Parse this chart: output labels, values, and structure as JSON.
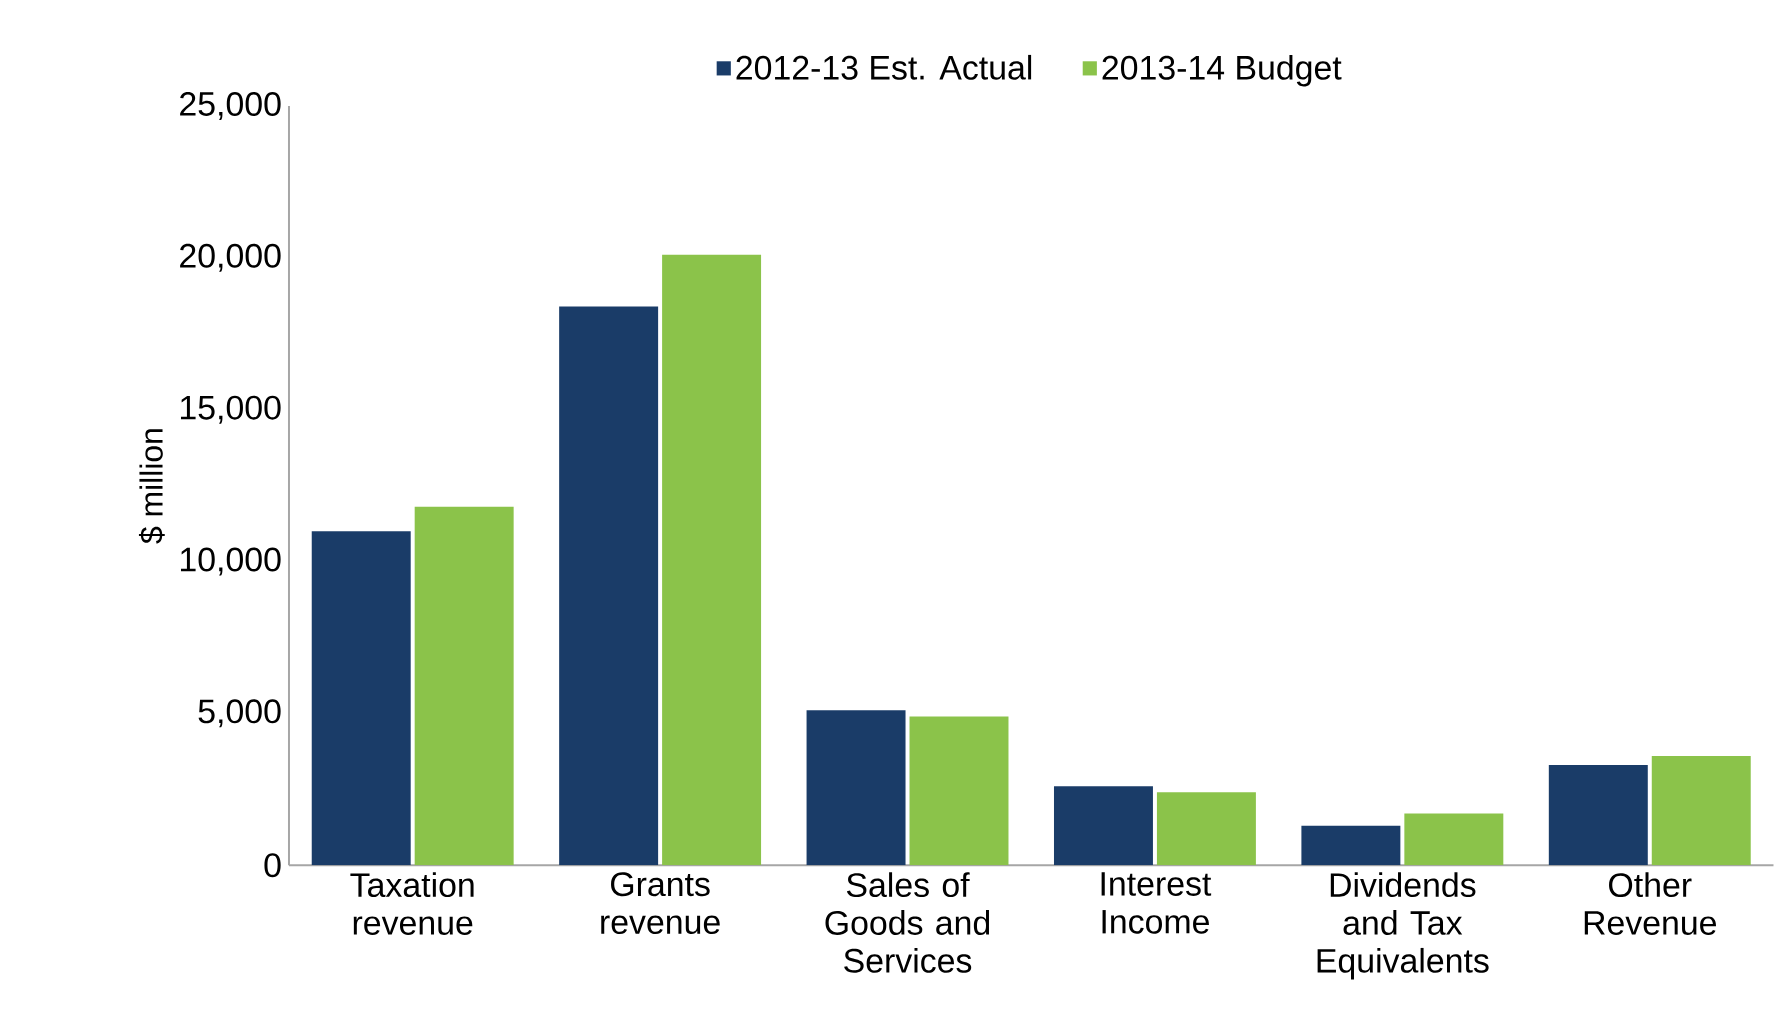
{
  "chart_data": {
    "type": "bar",
    "ylabel": "$ million",
    "categories": [
      "Taxation revenue",
      "Grants revenue",
      "Sales of Goods and Services",
      "Interest Income",
      "Dividends and Tax Equivalents",
      "Other Revenue"
    ],
    "series": [
      {
        "name": "2012-13 Est. Actual",
        "color": "#1a3c68",
        "values": [
          11000,
          18400,
          5100,
          2600,
          1300,
          3300
        ]
      },
      {
        "name": "2013-14 Budget",
        "color": "#8bc34a",
        "values": [
          11800,
          20100,
          4900,
          2400,
          1700,
          3600
        ]
      }
    ],
    "ylim": [
      0,
      25000
    ],
    "yticks": [
      {
        "value": 0,
        "label": "0"
      },
      {
        "value": 5000,
        "label": "5,000"
      },
      {
        "value": 10000,
        "label": "10,000"
      },
      {
        "value": 15000,
        "label": "15,000"
      },
      {
        "value": 20000,
        "label": "20,000"
      },
      {
        "value": 25000,
        "label": "25,000"
      }
    ],
    "grid": false,
    "legend": "top"
  }
}
